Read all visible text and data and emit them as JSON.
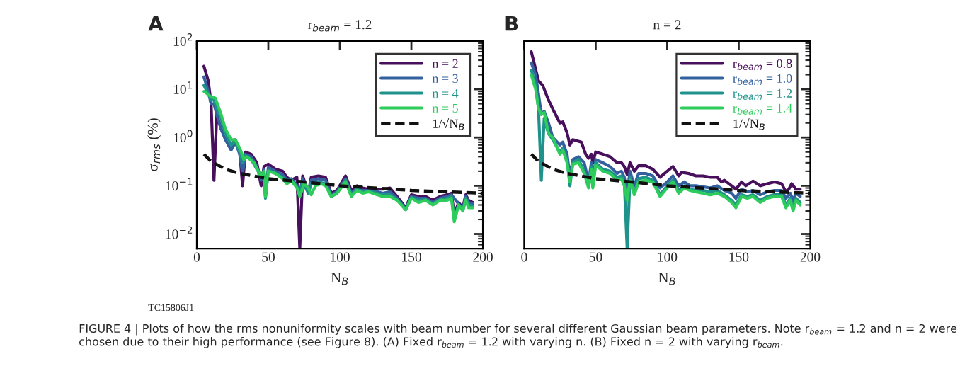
{
  "chart_data": [
    {
      "type": "line",
      "title": "r$_{beam}$ = 1.2",
      "xlabel": "N$_{B}$",
      "ylabel": "σ$_{rms}$ (%)",
      "log": "y",
      "xlim": [
        0,
        200
      ],
      "xticks": [
        0,
        50,
        100,
        150,
        200
      ],
      "ylim": [
        0.005,
        100
      ],
      "yticks": [
        {
          "value": 0.01,
          "label": "10$^{−2}$"
        },
        {
          "value": 0.1,
          "label": "10$^{−1}$"
        },
        {
          "value": 1,
          "label": "10$^{0}$"
        },
        {
          "value": 10,
          "label": "10$^{1}$"
        },
        {
          "value": 100,
          "label": "10$^{2}$"
        }
      ],
      "legend": "top right",
      "grid": false,
      "annotations": [
        "A",
        "TC15806J1",
        "FIGURE 4 | Plots of how the rms nonuniformity scales with beam number for several different Gaussian beam parameters. Note r$_{beam}$ = 1.2 and n = 2 were chosen due to their high performance (see Figure 8). (A) Fixed r$_{beam}$ = 1.2 with varying n. (B) Fixed n = 2 with varying r$_{beam}$."
      ],
      "series": [
        {
          "name": "n = 2",
          "color": "#48105c",
          "x": [
            5,
            8,
            10,
            12,
            14,
            17,
            20,
            24,
            27,
            30,
            32,
            34,
            38,
            42,
            45,
            47,
            50,
            55,
            60,
            63,
            66,
            70,
            72,
            74,
            78,
            80,
            85,
            90,
            94,
            98,
            104,
            108,
            112,
            116,
            120,
            126,
            130,
            135,
            140,
            146,
            150,
            155,
            160,
            165,
            170,
            175,
            178,
            180,
            183,
            186,
            188,
            190,
            193
          ],
          "values": [
            30,
            15,
            5,
            0.13,
            3,
            1.5,
            1,
            0.7,
            0.9,
            0.5,
            0.1,
            0.5,
            0.45,
            0.3,
            0.1,
            0.25,
            0.28,
            0.22,
            0.2,
            0.15,
            0.13,
            0.15,
            0.005,
            0.16,
            0.07,
            0.15,
            0.16,
            0.15,
            0.07,
            0.08,
            0.16,
            0.08,
            0.1,
            0.09,
            0.085,
            0.085,
            0.085,
            0.09,
            0.06,
            0.035,
            0.065,
            0.06,
            0.06,
            0.05,
            0.06,
            0.065,
            0.07,
            0.025,
            0.045,
            0.035,
            0.065,
            0.05,
            0.045
          ]
        },
        {
          "name": "n = 3",
          "color": "#33609e",
          "x": [
            5,
            8,
            10,
            12,
            14,
            17,
            20,
            24,
            27,
            30,
            32,
            34,
            38,
            42,
            45,
            47,
            48,
            50,
            55,
            60,
            63,
            66,
            70,
            72,
            74,
            78,
            80,
            85,
            90,
            94,
            98,
            104,
            108,
            112,
            116,
            120,
            126,
            130,
            135,
            140,
            146,
            150,
            155,
            160,
            165,
            170,
            175,
            178,
            180,
            183,
            186,
            188,
            190,
            193
          ],
          "values": [
            18,
            9,
            5,
            5,
            3,
            1.5,
            0.9,
            0.55,
            0.8,
            0.45,
            0.18,
            0.45,
            0.4,
            0.25,
            0.13,
            0.22,
            0.06,
            0.24,
            0.2,
            0.17,
            0.13,
            0.14,
            0.1,
            0.07,
            0.14,
            0.075,
            0.13,
            0.14,
            0.13,
            0.065,
            0.075,
            0.14,
            0.07,
            0.09,
            0.08,
            0.08,
            0.075,
            0.07,
            0.075,
            0.055,
            0.033,
            0.06,
            0.055,
            0.055,
            0.045,
            0.055,
            0.06,
            0.065,
            null,
            0.042,
            0.032,
            0.06,
            0.045,
            0.042
          ]
        },
        {
          "name": "n = 4",
          "color": "#1f938b",
          "x": [
            5,
            8,
            10,
            12,
            14,
            17,
            20,
            24,
            27,
            30,
            32,
            34,
            38,
            42,
            45,
            47,
            48,
            50,
            55,
            60,
            63,
            66,
            70,
            72,
            74,
            78,
            80,
            85,
            90,
            94,
            98,
            104,
            108,
            112,
            116,
            120,
            126,
            130,
            135,
            140,
            146,
            150,
            155,
            160,
            165,
            170,
            175,
            178,
            180,
            183,
            186,
            188,
            190,
            193
          ],
          "values": [
            12,
            8,
            6,
            6,
            4,
            2.5,
            1.2,
            0.7,
            0.85,
            0.5,
            0.3,
            0.42,
            0.35,
            0.22,
            0.16,
            0.2,
            0.055,
            0.21,
            0.18,
            0.15,
            0.12,
            0.13,
            0.095,
            0.065,
            0.12,
            0.07,
            0.11,
            0.12,
            0.11,
            0.06,
            0.07,
            0.13,
            0.065,
            0.085,
            0.075,
            0.078,
            0.07,
            0.065,
            0.065,
            0.052,
            0.032,
            0.057,
            0.05,
            0.052,
            0.042,
            0.052,
            0.055,
            0.06,
            0.02,
            0.041,
            0.031,
            0.055,
            0.04,
            0.038
          ]
        },
        {
          "name": "n = 5",
          "color": "#2ecc5c",
          "x": [
            5,
            10,
            13,
            17,
            20,
            24,
            27,
            30,
            33,
            35,
            40,
            43,
            45,
            47,
            48,
            50,
            55,
            60,
            63,
            66,
            70,
            72,
            75,
            78,
            80,
            83,
            87,
            90,
            94,
            98,
            104,
            108,
            112,
            116,
            120,
            126,
            130,
            135,
            140,
            146,
            150,
            155,
            160,
            165,
            170,
            175,
            178,
            180,
            183,
            186,
            188,
            190,
            193
          ],
          "values": [
            9,
            7,
            6.5,
            3,
            1.5,
            0.9,
            0.9,
            0.6,
            0.35,
            0.4,
            0.3,
            0.2,
            0.15,
            0.2,
            0.06,
            0.2,
            0.18,
            0.14,
            0.11,
            0.13,
            0.09,
            0.06,
            0.11,
            0.09,
            0.065,
            0.1,
            0.11,
            0.1,
            0.06,
            0.07,
            0.12,
            0.06,
            0.08,
            0.07,
            0.075,
            0.065,
            0.06,
            0.06,
            0.05,
            0.032,
            0.055,
            0.045,
            0.05,
            0.04,
            0.05,
            0.05,
            0.055,
            0.018,
            0.04,
            0.03,
            0.05,
            0.035,
            0.035
          ]
        },
        {
          "name": "1/√N$_{B}$",
          "color": "#111111",
          "line_style": "dashed",
          "x": [
            5,
            10,
            20,
            30,
            50,
            75,
            100,
            150,
            200
          ],
          "values": [
            0.45,
            0.32,
            0.22,
            0.18,
            0.14,
            0.12,
            0.1,
            0.08,
            0.07
          ]
        }
      ]
    },
    {
      "type": "line",
      "title": "n = 2",
      "xlabel": "N$_{B}$",
      "log": "y",
      "xlim": [
        0,
        200
      ],
      "xticks": [
        0,
        50,
        100,
        150,
        200
      ],
      "ylim": [
        0.005,
        100
      ],
      "yticks": [
        {
          "value": 0.01,
          "label": null
        },
        {
          "value": 0.1,
          "label": null
        },
        {
          "value": 1,
          "label": null
        },
        {
          "value": 10,
          "label": null
        },
        {
          "value": 100,
          "label": null
        }
      ],
      "tick_labels": "x",
      "legend": "top right",
      "grid": false,
      "annotations": [
        "B"
      ],
      "series": [
        {
          "name": "r$_{beam}$ = 0.8",
          "color": "#48105c",
          "x": [
            5,
            10,
            13,
            17,
            20,
            25,
            27,
            30,
            32,
            34,
            37,
            40,
            43,
            45,
            47,
            48,
            50,
            55,
            60,
            65,
            68,
            70,
            72,
            74,
            77,
            80,
            85,
            90,
            95,
            100,
            104,
            108,
            110,
            115,
            120,
            125,
            130,
            135,
            138,
            140,
            145,
            148,
            152,
            155,
            160,
            165,
            170,
            175,
            180,
            183,
            185,
            187,
            190,
            193
          ],
          "values": [
            60,
            15,
            12,
            6,
            3.9,
            2,
            2.1,
            1.25,
            0.7,
            0.9,
            0.85,
            0.8,
            0.45,
            0.37,
            0.45,
            0.3,
            0.5,
            0.45,
            0.4,
            0.3,
            0.3,
            0.25,
            0.17,
            0.3,
            0.2,
            0.26,
            0.26,
            0.22,
            0.15,
            0.2,
            0.25,
            0.16,
            0.19,
            0.18,
            0.16,
            0.16,
            0.15,
            0.15,
            0.12,
            0.13,
            0.1,
            0.085,
            0.12,
            0.1,
            0.125,
            0.1,
            0.11,
            0.12,
            0.11,
            0.075,
            0.085,
            0.11,
            0.085,
            0.085
          ]
        },
        {
          "name": "r$_{beam}$ = 1.0",
          "color": "#33609e",
          "x": [
            5,
            8,
            10,
            12,
            14,
            17,
            20,
            25,
            27,
            30,
            32,
            34,
            38,
            42,
            45,
            47,
            48,
            50,
            55,
            60,
            65,
            68,
            70,
            72,
            74,
            77,
            80,
            85,
            90,
            95,
            100,
            104,
            108,
            112,
            116,
            120,
            125,
            130,
            135,
            140,
            145,
            148,
            152,
            156,
            160,
            165,
            170,
            175,
            180,
            183,
            186,
            188,
            190,
            193
          ],
          "values": [
            35,
            20,
            8,
            3,
            3.5,
            2,
            1,
            0.7,
            0.8,
            0.45,
            0.15,
            0.35,
            0.4,
            0.3,
            0.12,
            0.3,
            0.12,
            0.35,
            0.3,
            0.25,
            0.18,
            0.2,
            0.15,
            0.07,
            0.2,
            0.1,
            0.18,
            0.18,
            0.16,
            0.09,
            0.12,
            0.16,
            0.1,
            0.12,
            0.1,
            0.1,
            0.095,
            0.09,
            0.1,
            0.08,
            0.07,
            0.055,
            0.085,
            0.075,
            0.08,
            0.065,
            0.075,
            0.08,
            0.08,
            0.055,
            0.07,
            0.05,
            0.07,
            0.06
          ]
        },
        {
          "name": "r$_{beam}$ = 1.2",
          "color": "#1f938b",
          "x": [
            5,
            8,
            10,
            12,
            14,
            17,
            20,
            25,
            27,
            30,
            32,
            34,
            38,
            42,
            45,
            47,
            48,
            50,
            55,
            60,
            65,
            68,
            70,
            72,
            74,
            77,
            80,
            85,
            90,
            95,
            100,
            104,
            108,
            112,
            116,
            120,
            125,
            130,
            135,
            140,
            145,
            148,
            152,
            156,
            160,
            165,
            170,
            175,
            180,
            183,
            186,
            188,
            190,
            193
          ],
          "values": [
            25,
            12,
            4,
            0.13,
            2.5,
            1.2,
            0.9,
            0.5,
            0.6,
            0.35,
            0.1,
            0.3,
            0.35,
            0.2,
            0.1,
            0.25,
            0.1,
            0.3,
            0.22,
            0.2,
            0.15,
            0.16,
            0.12,
            0.005,
            0.15,
            0.07,
            0.14,
            0.15,
            0.13,
            0.065,
            0.1,
            0.13,
            0.08,
            0.1,
            0.085,
            0.08,
            0.08,
            0.075,
            0.08,
            0.065,
            0.05,
            0.04,
            0.065,
            0.06,
            0.065,
            0.05,
            0.06,
            0.065,
            0.065,
            0.04,
            0.055,
            0.035,
            0.055,
            0.045
          ]
        },
        {
          "name": "r$_{beam}$ = 1.4",
          "color": "#2ecc5c",
          "x": [
            5,
            8,
            10,
            12,
            14,
            17,
            20,
            25,
            27,
            30,
            32,
            34,
            38,
            42,
            45,
            47,
            48,
            50,
            55,
            60,
            65,
            68,
            70,
            72,
            74,
            77,
            80,
            85,
            90,
            95,
            100,
            104,
            108,
            112,
            116,
            120,
            125,
            130,
            135,
            140,
            145,
            148,
            152,
            156,
            160,
            165,
            170,
            175,
            180,
            183,
            186,
            188,
            190,
            193
          ],
          "values": [
            20,
            10,
            4,
            3,
            3.3,
            1.2,
            1,
            0.45,
            0.55,
            0.3,
            0.12,
            0.28,
            0.3,
            0.18,
            0.09,
            0.22,
            0.09,
            0.27,
            0.2,
            0.18,
            0.13,
            0.14,
            0.1,
            0.05,
            0.13,
            0.065,
            0.12,
            0.13,
            0.12,
            0.06,
            0.09,
            0.12,
            0.07,
            0.09,
            0.08,
            0.075,
            0.07,
            0.065,
            0.07,
            0.06,
            0.045,
            0.035,
            0.06,
            0.055,
            0.06,
            0.045,
            0.055,
            0.06,
            0.06,
            0.035,
            0.05,
            0.03,
            0.05,
            0.04
          ]
        },
        {
          "name": "1/√N$_{B}$",
          "color": "#111111",
          "line_style": "dashed",
          "x": [
            5,
            10,
            20,
            30,
            50,
            75,
            100,
            150,
            200
          ],
          "values": [
            0.45,
            0.32,
            0.22,
            0.18,
            0.14,
            0.12,
            0.1,
            0.08,
            0.07
          ]
        }
      ]
    }
  ]
}
